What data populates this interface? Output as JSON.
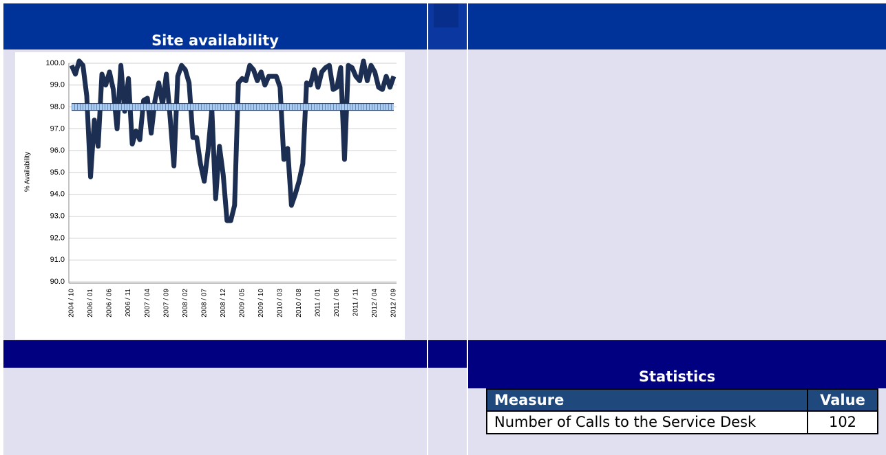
{
  "chart_data": {
    "type": "line",
    "title": "Site availability",
    "y_label": "% Availability",
    "categories": [
      "2004 / 10",
      null,
      null,
      null,
      null,
      "2006 / 01",
      null,
      null,
      null,
      null,
      "2006 / 06",
      null,
      null,
      null,
      null,
      "2006 / 11",
      null,
      null,
      null,
      null,
      "2007 / 04",
      null,
      null,
      null,
      null,
      "2007 / 09",
      null,
      null,
      null,
      null,
      "2008 / 02",
      null,
      null,
      null,
      null,
      "2008 / 07",
      null,
      null,
      null,
      null,
      "2008 / 12",
      null,
      null,
      null,
      null,
      "2009 / 05",
      null,
      null,
      null,
      null,
      "2009 / 10",
      null,
      null,
      null,
      null,
      "2010 / 03",
      null,
      null,
      null,
      null,
      "2010 / 08",
      null,
      null,
      null,
      null,
      "2011 / 01",
      null,
      null,
      null,
      null,
      "2011 / 06",
      null,
      null,
      null,
      null,
      "2011 / 11",
      null,
      null,
      null,
      null,
      "2012 / 04",
      null,
      null,
      null,
      null,
      "2012 / 09"
    ],
    "series": [
      {
        "color": "#1c2f52",
        "values": [
          99.9,
          99.5,
          100.1,
          99.9,
          98.5,
          94.8,
          97.4,
          96.2,
          99.5,
          99.0,
          99.6,
          98.8,
          97.0,
          99.9,
          97.8,
          99.3,
          96.3,
          96.9,
          96.5,
          98.3,
          98.4,
          96.8,
          98.3,
          99.1,
          98.1,
          99.5,
          97.5,
          95.3,
          99.4,
          99.9,
          99.7,
          99.1,
          96.6,
          96.6,
          95.4,
          94.6,
          96.0,
          97.9,
          93.8,
          96.2,
          94.9,
          92.8,
          92.8,
          93.5,
          99.1,
          99.3,
          99.2,
          99.9,
          99.7,
          99.2,
          99.6,
          99.0,
          99.4,
          99.4,
          99.4,
          98.9,
          95.6,
          96.1,
          93.5,
          94.0,
          94.6,
          95.4,
          99.1,
          99.0,
          99.7,
          98.9,
          99.6,
          99.8,
          99.9,
          98.8,
          98.9,
          99.8,
          95.6,
          99.9,
          99.8,
          99.4,
          99.2,
          100.1,
          99.2,
          99.9,
          99.6,
          98.9,
          98.8,
          99.4,
          98.9,
          99.4
        ]
      },
      {
        "color": "#a8cdf0",
        "values": [
          98,
          98,
          98,
          98,
          98,
          98,
          98,
          98,
          98,
          98,
          98,
          98,
          98,
          98,
          98,
          98,
          98,
          98,
          98,
          98,
          98,
          98,
          98,
          98,
          98,
          98,
          98,
          98,
          98,
          98,
          98,
          98,
          98,
          98,
          98,
          98,
          98,
          98,
          98,
          98,
          98,
          98,
          98,
          98,
          98,
          98,
          98,
          98,
          98,
          98,
          98,
          98,
          98,
          98,
          98,
          98,
          98,
          98,
          98,
          98,
          98,
          98,
          98,
          98,
          98,
          98,
          98,
          98,
          98,
          98,
          98,
          98,
          98,
          98,
          98,
          98,
          98,
          98,
          98,
          98,
          98,
          98,
          98,
          98,
          98,
          98
        ]
      }
    ],
    "ylim": [
      90,
      100
    ],
    "yticks": [
      {
        "value": 90,
        "label": "90.0"
      },
      {
        "value": 91,
        "label": "91.0"
      },
      {
        "value": 92,
        "label": "92.0"
      },
      {
        "value": 93,
        "label": "93.0"
      },
      {
        "value": 94,
        "label": "94.0"
      },
      {
        "value": 95,
        "label": "95.0"
      },
      {
        "value": 96,
        "label": "96.0"
      },
      {
        "value": 97,
        "label": "97.0"
      },
      {
        "value": 98,
        "label": "98.0"
      },
      {
        "value": 99,
        "label": "99.0"
      },
      {
        "value": 100,
        "label": "100.0"
      }
    ],
    "grid": true
  },
  "statistics": {
    "title": "Statistics",
    "columns": [
      "Measure",
      "Value"
    ],
    "rows": [
      [
        "Number of Calls to the Service Desk",
        102
      ]
    ]
  }
}
